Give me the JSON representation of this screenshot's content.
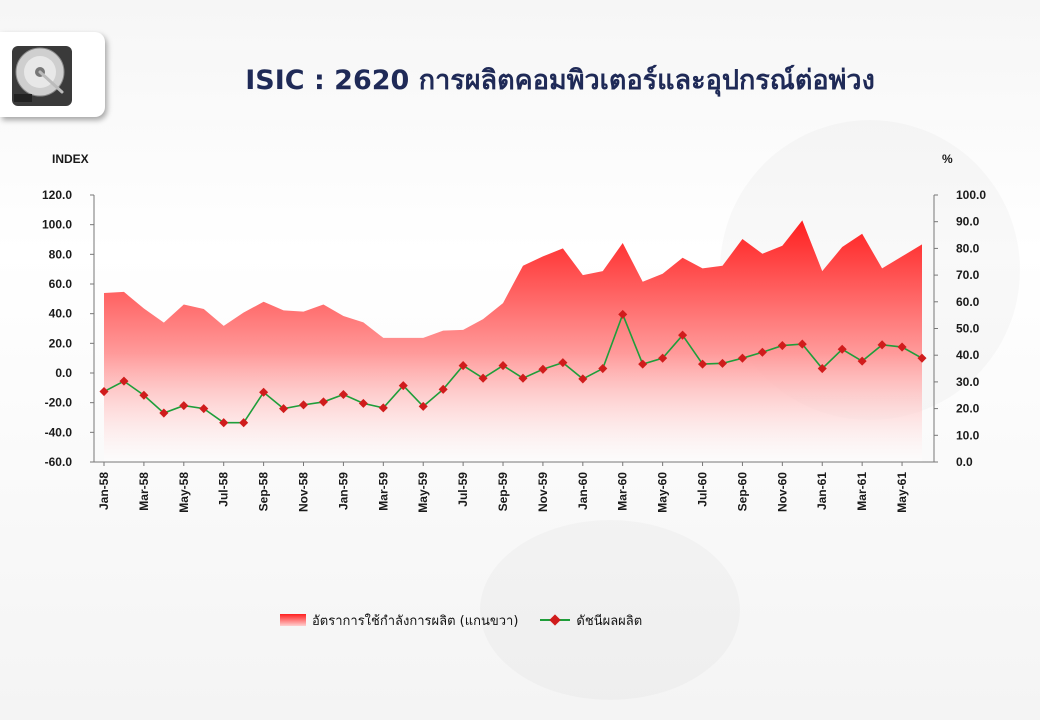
{
  "title": "ISIC : 2620 การผลิตคอมพิวเตอร์และอุปกรณ์ต่อพ่วง",
  "icon": "hard-disk-icon",
  "chart_data": {
    "type": "line+area",
    "x": [
      "Jan-58",
      "Feb-58",
      "Mar-58",
      "Apr-58",
      "May-58",
      "Jun-58",
      "Jul-58",
      "Aug-58",
      "Sep-58",
      "Oct-58",
      "Nov-58",
      "Dec-58",
      "Jan-59",
      "Feb-59",
      "Mar-59",
      "Apr-59",
      "May-59",
      "Jun-59",
      "Jul-59",
      "Aug-59",
      "Sep-59",
      "Oct-59",
      "Nov-59",
      "Dec-59",
      "Jan-60",
      "Feb-60",
      "Mar-60",
      "Apr-60",
      "May-60",
      "Jun-60",
      "Jul-60",
      "Aug-60",
      "Sep-60",
      "Oct-60",
      "Nov-60",
      "Dec-60",
      "Jan-61",
      "Feb-61",
      "Mar-61",
      "Apr-61",
      "May-61",
      "Jun-61"
    ],
    "tick_labels": [
      "Jan-58",
      "Mar-58",
      "May-58",
      "Jul-58",
      "Sep-58",
      "Nov-58",
      "Jan-59",
      "Mar-59",
      "May-59",
      "Jul-59",
      "Sep-59",
      "Nov-59",
      "Jan-60",
      "Mar-60",
      "May-60",
      "Jul-60",
      "Sep-60",
      "Nov-60",
      "Jan-61",
      "Mar-61",
      "May-61"
    ],
    "series": [
      {
        "name": "อัตราการใช้กำลังการผลิต (แกนขวา)",
        "type": "area",
        "axis": "right",
        "color": "#ff1f1f",
        "values": [
          63.3,
          63.7,
          57.5,
          52.2,
          59.0,
          57.3,
          51.0,
          56.0,
          60.0,
          56.8,
          56.3,
          59.0,
          54.7,
          52.3,
          46.5,
          46.5,
          46.5,
          49.2,
          49.5,
          53.5,
          59.5,
          73.5,
          77.0,
          80.0,
          70.0,
          71.5,
          82.0,
          67.5,
          70.5,
          76.5,
          72.5,
          73.5,
          83.5,
          78.0,
          81.0,
          90.5,
          71.5,
          80.5,
          85.5,
          72.5,
          77.0,
          81.5
        ]
      },
      {
        "name": "ดัชนีผลผลิต",
        "type": "line",
        "axis": "left",
        "color": "#1e9e3a",
        "marker_color": "#d01c1c",
        "values": [
          -12.5,
          -5.5,
          -15.0,
          -27.0,
          -22.0,
          -24.0,
          -33.5,
          -33.5,
          -13.0,
          -24.0,
          -21.5,
          -19.5,
          -14.5,
          -20.5,
          -23.5,
          -8.5,
          -22.5,
          -11.0,
          5.0,
          -3.5,
          5.0,
          -3.5,
          2.5,
          7.0,
          -4.0,
          3.0,
          39.5,
          6.0,
          10.0,
          25.5,
          6.0,
          6.5,
          10.0,
          14.0,
          18.5,
          19.5,
          3.0,
          16.0,
          8.0,
          19.0,
          17.5,
          10.0
        ]
      }
    ],
    "y_left": {
      "label": "INDEX",
      "min": -60,
      "max": 120,
      "step": 20,
      "ticks": [
        "120.0",
        "100.0",
        "80.0",
        "60.0",
        "40.0",
        "20.0",
        "0.0",
        "-20.0",
        "-40.0",
        "-60.0"
      ]
    },
    "y_right": {
      "label": "%",
      "min": 0,
      "max": 100,
      "step": 10,
      "ticks": [
        "100.0",
        "90.0",
        "80.0",
        "70.0",
        "60.0",
        "50.0",
        "40.0",
        "30.0",
        "20.0",
        "10.0",
        "0.0"
      ]
    },
    "grid": false,
    "legend_position": "bottom"
  }
}
